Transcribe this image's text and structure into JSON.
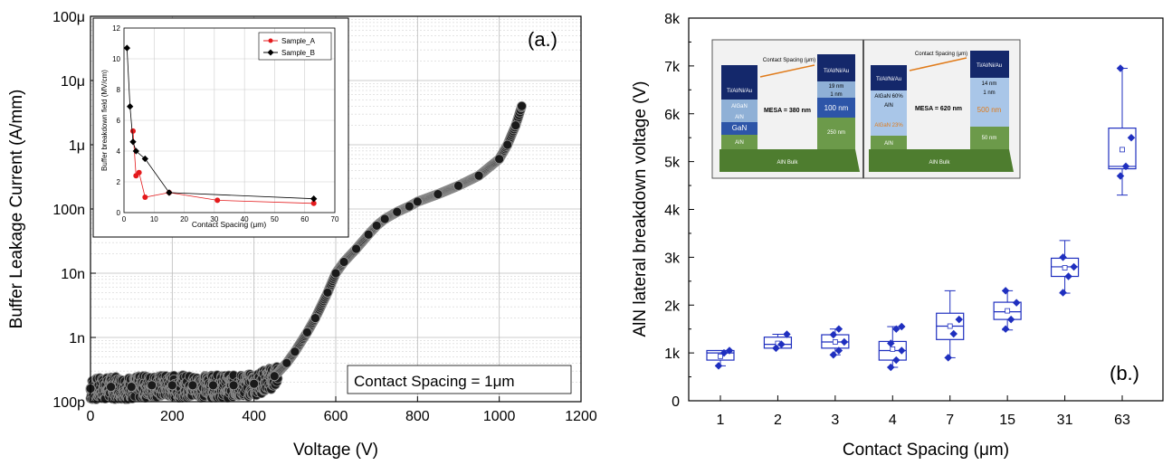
{
  "chart_data": [
    {
      "type": "scatter",
      "panel_label": "(a.)",
      "xlabel": "Voltage (V)",
      "ylabel": "Buffer Leakage Current (A/mm)",
      "xlim": [
        0,
        1200
      ],
      "ylim": [
        1e-10,
        0.0001
      ],
      "yscale": "log",
      "grid": true,
      "x_ticks": [
        "0",
        "200",
        "400",
        "600",
        "800",
        "1000",
        "1200"
      ],
      "y_ticks": [
        "100p",
        "1n",
        "10n",
        "100n",
        "1μ",
        "10μ",
        "100μ"
      ],
      "annotation": "Contact Spacing = 1μm",
      "series": [
        {
          "x": [
            0,
            50,
            100,
            150,
            200,
            250,
            300,
            350,
            400,
            450,
            480,
            500,
            530,
            550,
            580,
            600,
            620,
            650,
            680,
            700,
            720,
            750,
            780,
            800,
            850,
            900,
            950,
            1000,
            1020,
            1040,
            1055
          ],
          "y": [
            1.6e-10,
            1.7e-10,
            1.7e-10,
            1.8e-10,
            1.8e-10,
            1.8e-10,
            1.8e-10,
            1.8e-10,
            1.9e-10,
            2.5e-10,
            4e-10,
            6e-10,
            1.2e-09,
            2e-09,
            5e-09,
            1e-08,
            1.5e-08,
            2.4e-08,
            4e-08,
            5.5e-08,
            7e-08,
            9e-08,
            1.1e-07,
            1.3e-07,
            1.7e-07,
            2.3e-07,
            3.3e-07,
            6e-07,
            1e-06,
            2e-06,
            4e-06
          ]
        }
      ]
    },
    {
      "type": "line",
      "inset_of": "(a.)",
      "xlabel": "Contact Spacing (μm)",
      "ylabel": "Buffer breakdown field (MV/cm)",
      "xlim": [
        0,
        70
      ],
      "ylim": [
        0,
        12
      ],
      "x_ticks": [
        "0",
        "10",
        "20",
        "30",
        "40",
        "50",
        "60",
        "70"
      ],
      "y_ticks": [
        "0",
        "2",
        "4",
        "6",
        "8",
        "10",
        "12"
      ],
      "legend": "top-right",
      "series": [
        {
          "name": "Sample_A",
          "color": "#e41a1c",
          "x": [
            3,
            4,
            5,
            7,
            15,
            31,
            63
          ],
          "y": [
            5.3,
            2.4,
            2.6,
            1.0,
            1.3,
            0.8,
            0.6
          ]
        },
        {
          "name": "Sample_B",
          "color": "#000000",
          "x": [
            1,
            2,
            3,
            4,
            7,
            15,
            63
          ],
          "y": [
            10.7,
            6.9,
            4.6,
            4.0,
            3.5,
            1.3,
            0.9
          ]
        }
      ]
    },
    {
      "type": "box",
      "panel_label": "(b.)",
      "xlabel": "Contact Spacing (μm)",
      "ylabel": "AlN lateral breakdown voltage (V)",
      "ylim": [
        0,
        8000
      ],
      "y_ticks": [
        "0",
        "1k",
        "2k",
        "3k",
        "4k",
        "5k",
        "6k",
        "7k",
        "8k"
      ],
      "categories": [
        "1",
        "2",
        "3",
        "4",
        "7",
        "15",
        "31",
        "63"
      ],
      "color": "#1f2fbf",
      "boxes": [
        {
          "min": 730,
          "q1": 850,
          "median": 1000,
          "q3": 1050,
          "max": 1050,
          "mean": 930,
          "points": [
            730,
            1000,
            1050
          ]
        },
        {
          "min": 1100,
          "q1": 1100,
          "median": 1180,
          "q3": 1330,
          "max": 1390,
          "mean": 1200,
          "points": [
            1100,
            1180,
            1390
          ]
        },
        {
          "min": 960,
          "q1": 1100,
          "median": 1230,
          "q3": 1380,
          "max": 1500,
          "mean": 1230,
          "points": [
            960,
            1050,
            1230,
            1380,
            1500
          ]
        },
        {
          "min": 700,
          "q1": 850,
          "median": 1050,
          "q3": 1240,
          "max": 1550,
          "mean": 1080,
          "points": [
            700,
            850,
            1050,
            1200,
            1500,
            1550
          ]
        },
        {
          "min": 900,
          "q1": 1280,
          "median": 1560,
          "q3": 1830,
          "max": 2300,
          "mean": 1560,
          "points": [
            900,
            1400,
            1700
          ]
        },
        {
          "min": 1480,
          "q1": 1700,
          "median": 1860,
          "q3": 2060,
          "max": 2300,
          "mean": 1880,
          "points": [
            1500,
            1700,
            2050,
            2300
          ]
        },
        {
          "min": 2250,
          "q1": 2600,
          "median": 2800,
          "q3": 2980,
          "max": 3350,
          "mean": 2780,
          "points": [
            2260,
            2600,
            2800,
            3000
          ]
        },
        {
          "min": 4300,
          "q1": 4850,
          "median": 4900,
          "q3": 5700,
          "max": 6950,
          "mean": 5250,
          "points": [
            4700,
            4900,
            5500,
            6950
          ]
        }
      ],
      "inset_diagram": {
        "left": {
          "contact_label": "Contact Spacing (μm)",
          "left_stack": [
            "Ti/Al/Ni/Au",
            "AlGaN",
            "AlN",
            "GaN",
            "AlN"
          ],
          "right_stack": [
            "Ti/Al/Ni/Au",
            "19 nm",
            "1 nm",
            "100 nm",
            "250 nm"
          ],
          "mesa": "MESA = 380 nm",
          "bulk": "AlN Bulk"
        },
        "right": {
          "contact_label": "Contact Spacing (μm)",
          "left_stack": [
            "Ti/Al/Ni/Au",
            "AlGaN 60%",
            "AlN",
            "AlGaN 23%",
            "AlN"
          ],
          "right_stack": [
            "Ti/Al/Ni/Au",
            "14 nm",
            "1 nm",
            "500 nm",
            "50 nm"
          ],
          "mesa": "MESA = 620 nm",
          "bulk": "AlN Bulk"
        }
      }
    }
  ]
}
